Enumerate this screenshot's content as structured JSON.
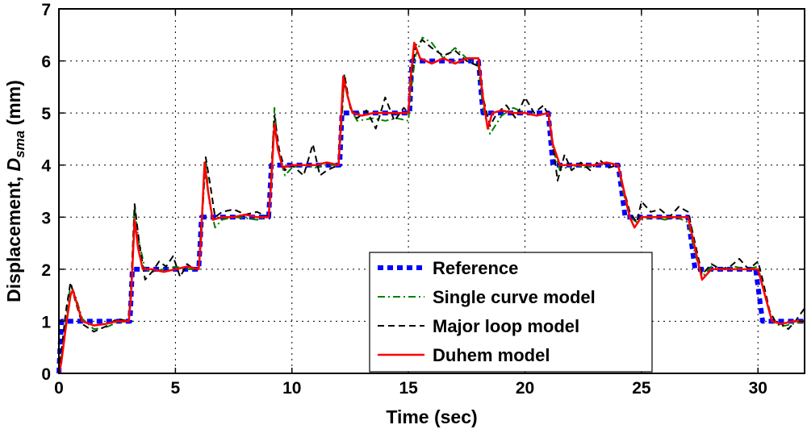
{
  "chart_data": {
    "type": "line",
    "xlabel": "Time (sec)",
    "ylabel_main": "Displacement, ",
    "ylabel_var": "D",
    "ylabel_sub": "sma",
    "ylabel_unit": " (mm)",
    "xlim": [
      0,
      32
    ],
    "ylim": [
      0,
      7
    ],
    "xticks": [
      0,
      5,
      10,
      15,
      20,
      25,
      30
    ],
    "yticks": [
      0,
      1,
      2,
      3,
      4,
      5,
      6,
      7
    ],
    "grid": true,
    "legend_position": "lower-right",
    "series": [
      {
        "name": "Reference",
        "color": "#0000ff",
        "style": "dotted-thick",
        "x": [
          0,
          0.05,
          0.12,
          3.05,
          3.15,
          6.0,
          6.12,
          9.0,
          9.12,
          12.05,
          12.15,
          15.05,
          15.15,
          18.0,
          18.2,
          21.0,
          21.2,
          24.0,
          24.3,
          27.0,
          27.3,
          29.9,
          30.2,
          31.0,
          32.0
        ],
        "y": [
          0,
          0.5,
          1,
          1,
          2,
          2,
          3,
          3,
          4,
          4,
          5,
          5,
          6,
          6,
          5,
          5,
          4,
          4,
          3,
          3,
          2,
          2,
          1,
          1,
          1
        ]
      },
      {
        "name": "Single curve model",
        "color": "#008000",
        "style": "dash-dot",
        "x": [
          0,
          0.1,
          0.3,
          0.5,
          0.7,
          1.0,
          1.5,
          2.0,
          2.5,
          3.0,
          3.1,
          3.25,
          3.4,
          3.7,
          4.0,
          4.5,
          5.0,
          5.5,
          6.0,
          6.1,
          6.3,
          6.45,
          6.7,
          7.0,
          7.5,
          8.0,
          8.5,
          9.0,
          9.1,
          9.25,
          9.4,
          9.7,
          10.0,
          10.5,
          11.0,
          11.5,
          12.0,
          12.1,
          12.25,
          12.5,
          12.8,
          13.5,
          14.0,
          14.5,
          15.0,
          15.1,
          15.3,
          15.6,
          16.0,
          16.5,
          17.0,
          17.5,
          18.0,
          18.2,
          18.5,
          19.0,
          19.5,
          20.0,
          20.5,
          21.0,
          21.2,
          21.5,
          22.0,
          22.5,
          23.0,
          23.5,
          24.0,
          24.2,
          24.5,
          24.8,
          25.0,
          25.5,
          26.0,
          26.5,
          27.0,
          27.3,
          27.6,
          28.0,
          28.5,
          29.0,
          29.5,
          30.0,
          30.3,
          30.6,
          31.0,
          31.5,
          32.0
        ],
        "y": [
          0,
          0.3,
          1.0,
          1.7,
          1.5,
          1.05,
          0.85,
          0.88,
          0.98,
          1.0,
          1.6,
          3.2,
          2.6,
          2.0,
          1.95,
          2.0,
          2.05,
          2.0,
          2.0,
          2.6,
          4.1,
          3.3,
          2.8,
          2.95,
          3.0,
          2.98,
          2.95,
          3.0,
          3.7,
          5.1,
          4.3,
          3.8,
          3.95,
          4.0,
          3.95,
          4.0,
          4.0,
          4.6,
          5.7,
          5.1,
          4.85,
          4.9,
          4.85,
          4.9,
          4.85,
          5.4,
          6.1,
          6.45,
          6.35,
          6.05,
          6.25,
          6.05,
          5.9,
          5.1,
          4.6,
          4.95,
          5.1,
          5.0,
          4.95,
          5.0,
          4.3,
          3.9,
          4.0,
          3.95,
          4.0,
          4.05,
          4.0,
          3.5,
          3.0,
          2.9,
          2.95,
          3.0,
          2.95,
          3.0,
          2.9,
          2.3,
          1.85,
          2.05,
          2.0,
          2.05,
          2.0,
          2.05,
          1.5,
          1.0,
          0.9,
          0.95,
          1.0
        ]
      },
      {
        "name": "Major loop model",
        "color": "#000000",
        "style": "dashed",
        "x": [
          0,
          0.1,
          0.3,
          0.5,
          0.7,
          1.0,
          1.5,
          2.0,
          2.5,
          3.0,
          3.1,
          3.25,
          3.45,
          3.7,
          4.0,
          4.3,
          4.6,
          4.9,
          5.2,
          5.5,
          5.8,
          6.0,
          6.1,
          6.3,
          6.5,
          6.7,
          7.0,
          7.5,
          8.0,
          8.5,
          9.0,
          9.1,
          9.25,
          9.45,
          9.7,
          10.0,
          10.5,
          10.9,
          11.2,
          11.5,
          12.0,
          12.1,
          12.25,
          12.5,
          12.8,
          13.2,
          13.6,
          14.0,
          14.4,
          14.8,
          15.0,
          15.1,
          15.3,
          15.6,
          16.0,
          16.5,
          17.0,
          17.5,
          18.0,
          18.2,
          18.5,
          18.8,
          19.2,
          19.6,
          20.0,
          20.4,
          20.8,
          21.0,
          21.2,
          21.4,
          21.7,
          22.0,
          22.4,
          22.8,
          23.2,
          23.6,
          24.0,
          24.2,
          24.5,
          24.8,
          25.0,
          25.4,
          25.8,
          26.2,
          26.6,
          27.0,
          27.3,
          27.6,
          28.0,
          28.4,
          28.8,
          29.2,
          29.6,
          30.0,
          30.2,
          30.5,
          30.8,
          31.0,
          31.3,
          31.6,
          32.0
        ],
        "y": [
          0,
          0.4,
          1.2,
          1.75,
          1.4,
          0.95,
          0.8,
          0.9,
          1.05,
          1.0,
          1.7,
          3.25,
          2.5,
          1.8,
          1.95,
          2.15,
          2.05,
          2.25,
          1.85,
          2.1,
          2.0,
          2.0,
          2.8,
          4.15,
          3.6,
          3.0,
          3.1,
          3.15,
          3.05,
          3.1,
          3.0,
          3.8,
          4.95,
          4.3,
          3.9,
          4.0,
          3.8,
          4.4,
          3.8,
          3.9,
          4.0,
          4.7,
          5.75,
          5.1,
          4.9,
          5.05,
          4.7,
          5.3,
          4.85,
          5.1,
          5.0,
          5.6,
          6.3,
          6.4,
          6.25,
          6.1,
          6.2,
          6.0,
          5.9,
          5.3,
          4.75,
          5.0,
          5.15,
          4.9,
          5.3,
          5.0,
          5.15,
          4.95,
          4.4,
          3.7,
          4.2,
          3.9,
          4.05,
          3.9,
          4.1,
          3.95,
          4.0,
          3.6,
          3.1,
          2.9,
          3.3,
          3.1,
          3.15,
          3.0,
          3.2,
          3.1,
          2.5,
          1.9,
          2.1,
          2.0,
          2.05,
          2.2,
          2.0,
          2.15,
          1.8,
          1.2,
          0.95,
          0.95,
          0.85,
          1.0,
          1.25
        ]
      },
      {
        "name": "Duhem model",
        "color": "#ff0000",
        "style": "solid",
        "x": [
          0,
          0.1,
          0.3,
          0.5,
          0.6,
          0.8,
          1.0,
          1.5,
          2.0,
          2.5,
          3.0,
          3.1,
          3.25,
          3.4,
          3.6,
          4.0,
          4.5,
          5.0,
          5.5,
          6.0,
          6.1,
          6.25,
          6.4,
          6.6,
          7.0,
          7.5,
          8.0,
          8.5,
          9.0,
          9.1,
          9.25,
          9.4,
          9.6,
          10.0,
          10.5,
          11.0,
          11.5,
          12.0,
          12.1,
          12.2,
          12.4,
          12.6,
          13.0,
          13.5,
          14.0,
          14.5,
          15.0,
          15.1,
          15.25,
          15.5,
          16.0,
          16.5,
          17.0,
          17.5,
          18.0,
          18.2,
          18.4,
          18.6,
          19.0,
          19.5,
          20.0,
          20.5,
          21.0,
          21.2,
          21.5,
          22.0,
          22.5,
          23.0,
          23.5,
          24.0,
          24.2,
          24.5,
          24.7,
          25.0,
          25.5,
          26.0,
          26.5,
          27.0,
          27.3,
          27.6,
          28.0,
          28.5,
          29.0,
          29.5,
          30.0,
          30.3,
          30.6,
          31.0,
          31.5,
          32.0
        ],
        "y": [
          0,
          0.2,
          0.9,
          1.5,
          1.6,
          1.3,
          1.0,
          0.92,
          0.95,
          1.0,
          1.0,
          1.5,
          2.95,
          2.4,
          2.0,
          2.0,
          1.95,
          2.0,
          2.05,
          2.0,
          2.6,
          4.05,
          3.5,
          2.95,
          3.0,
          3.0,
          3.05,
          3.0,
          3.0,
          3.6,
          4.8,
          4.3,
          3.95,
          4.0,
          4.0,
          4.0,
          4.05,
          4.0,
          4.8,
          5.7,
          5.3,
          5.0,
          4.95,
          5.0,
          5.0,
          5.0,
          5.0,
          5.7,
          6.35,
          6.05,
          5.95,
          6.05,
          5.95,
          6.05,
          6.05,
          5.3,
          4.7,
          5.0,
          5.05,
          5.0,
          5.0,
          4.95,
          5.0,
          4.4,
          4.0,
          4.0,
          4.0,
          4.0,
          4.05,
          4.0,
          3.6,
          3.0,
          2.8,
          3.0,
          3.0,
          3.0,
          3.0,
          3.0,
          2.4,
          1.8,
          2.0,
          2.0,
          2.0,
          2.0,
          2.0,
          1.5,
          1.0,
          0.95,
          1.0,
          1.0
        ]
      }
    ]
  }
}
